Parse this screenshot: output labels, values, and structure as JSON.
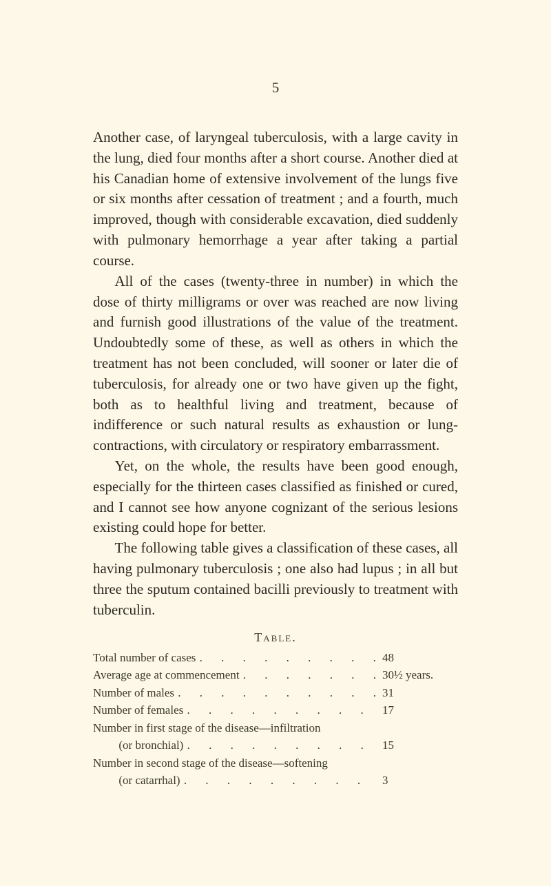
{
  "page_number": "5",
  "paragraphs": [
    "Another case, of laryngeal tuberculosis, with a large cavity in the lung, died four months after a short course. Another died at his Canadian home of extensive involvement of the lungs five or six months after cessation of treatment ; and a fourth, much improved, though with considerable excavation, died suddenly with pulmonary hemorrhage a year after taking a partial course.",
    "All of the cases (twenty-three in number) in which the dose of thirty milligrams or over was reached are now living and furnish good illustrations of the value of the treatment. Undoubtedly some of these, as well as others in which the treatment has not been concluded, will sooner or later die of tuberculosis, for already one or two have given up the fight, both as to healthful living and treatment, because of indifference or such natural results as exhaustion or lung-contractions, with circulatory or respiratory embarrassment.",
    "Yet, on the whole, the results have been good enough, especially for the thirteen cases classified as finished or cured, and I cannot see how anyone cognizant of the serious lesions existing could hope for better.",
    "The following table gives a classification of these cases, all having pulmonary tuberculosis ; one also had lupus ; in all but three the sputum contained bacilli previously to treatment with tuberculin."
  ],
  "table": {
    "heading": "Table.",
    "rows": [
      {
        "label": "Total number of cases",
        "value": "48",
        "indent": false
      },
      {
        "label": "Average age at commencement",
        "value": "30½ years.",
        "indent": false
      },
      {
        "label": "Number of males",
        "value": "31",
        "indent": false
      },
      {
        "label": "Number of females",
        "value": "17",
        "indent": false
      },
      {
        "label": "Number in first stage of the disease—infiltration",
        "value": "",
        "indent": false
      },
      {
        "label": "(or bronchial)",
        "value": "15",
        "indent": true
      },
      {
        "label": "Number in second stage of the disease—softening",
        "value": "",
        "indent": false
      },
      {
        "label": "(or catarrhal)",
        "value": "3",
        "indent": true
      }
    ]
  }
}
